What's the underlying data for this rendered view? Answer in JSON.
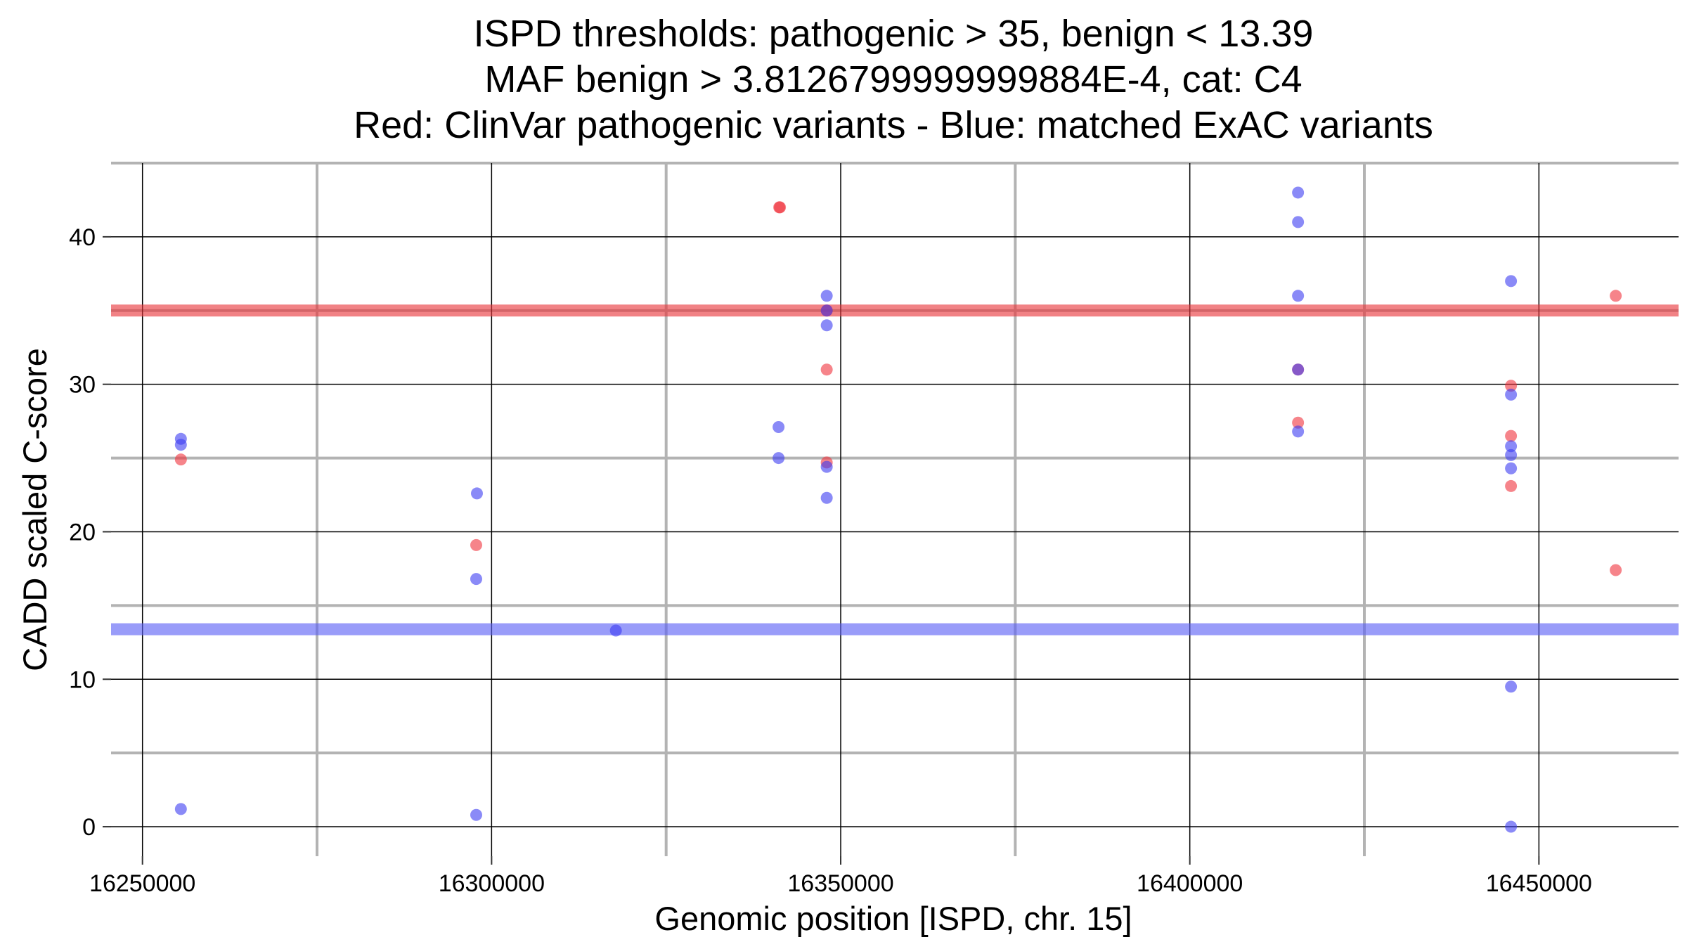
{
  "chart_data": {
    "type": "scatter",
    "title_lines": [
      "ISPD thresholds: pathogenic > 35, benign < 13.39",
      "MAF benign > 3.8126799999999884E-4, cat: C4",
      "Red: ClinVar pathogenic variants - Blue: matched ExAC variants"
    ],
    "xlabel": "Genomic position [ISPD, chr. 15]",
    "ylabel": "CADD scaled C-score",
    "xlim": [
      16245500,
      16470000
    ],
    "ylim": [
      -2,
      45
    ],
    "x_ticks": [
      16250000,
      16300000,
      16350000,
      16400000,
      16450000
    ],
    "x_tick_labels": [
      "16250000",
      "16300000",
      "16350000",
      "16400000",
      "16450000"
    ],
    "x_minor_grid": [
      16275000,
      16325000,
      16375000,
      16425000
    ],
    "y_ticks": [
      0,
      10,
      20,
      30,
      40
    ],
    "y_tick_labels": [
      "0",
      "10",
      "20",
      "30",
      "40"
    ],
    "y_minor_grid": [
      5,
      15,
      25,
      35,
      45
    ],
    "grid": true,
    "legend": "none",
    "thresholds": [
      {
        "y": 35,
        "color": "#e8363a"
      },
      {
        "y": 13.39,
        "color": "#5b5ff5"
      }
    ],
    "series": [
      {
        "color": "#f0323c",
        "points": [
          {
            "x": 16255500,
            "y": 24.9
          },
          {
            "x": 16297800,
            "y": 19.1
          },
          {
            "x": 16341200,
            "y": 42.0
          },
          {
            "x": 16341300,
            "y": 42.0
          },
          {
            "x": 16348000,
            "y": 35.0
          },
          {
            "x": 16348000,
            "y": 31.0
          },
          {
            "x": 16348000,
            "y": 24.7
          },
          {
            "x": 16415500,
            "y": 31.0
          },
          {
            "x": 16415500,
            "y": 27.4
          },
          {
            "x": 16446000,
            "y": 29.9
          },
          {
            "x": 16446000,
            "y": 26.5
          },
          {
            "x": 16446000,
            "y": 23.1
          },
          {
            "x": 16461000,
            "y": 36.0
          },
          {
            "x": 16461000,
            "y": 17.4
          }
        ]
      },
      {
        "color": "#3c3cf2",
        "points": [
          {
            "x": 16255500,
            "y": 26.3
          },
          {
            "x": 16255500,
            "y": 25.9
          },
          {
            "x": 16255500,
            "y": 1.2
          },
          {
            "x": 16297900,
            "y": 22.6
          },
          {
            "x": 16297800,
            "y": 16.8
          },
          {
            "x": 16297800,
            "y": 0.8
          },
          {
            "x": 16317800,
            "y": 13.3
          },
          {
            "x": 16341100,
            "y": 27.1
          },
          {
            "x": 16341100,
            "y": 25.0
          },
          {
            "x": 16348000,
            "y": 36.0
          },
          {
            "x": 16348000,
            "y": 35.0
          },
          {
            "x": 16348000,
            "y": 34.0
          },
          {
            "x": 16348000,
            "y": 24.4
          },
          {
            "x": 16348000,
            "y": 22.3
          },
          {
            "x": 16415500,
            "y": 43.0
          },
          {
            "x": 16415500,
            "y": 41.0
          },
          {
            "x": 16415500,
            "y": 36.0
          },
          {
            "x": 16415500,
            "y": 31.0
          },
          {
            "x": 16415500,
            "y": 26.8
          },
          {
            "x": 16446000,
            "y": 37.0
          },
          {
            "x": 16446000,
            "y": 29.3
          },
          {
            "x": 16446000,
            "y": 25.8
          },
          {
            "x": 16446000,
            "y": 25.2
          },
          {
            "x": 16446000,
            "y": 24.3
          },
          {
            "x": 16446000,
            "y": 9.5
          },
          {
            "x": 16446000,
            "y": 0.0
          }
        ]
      }
    ]
  }
}
